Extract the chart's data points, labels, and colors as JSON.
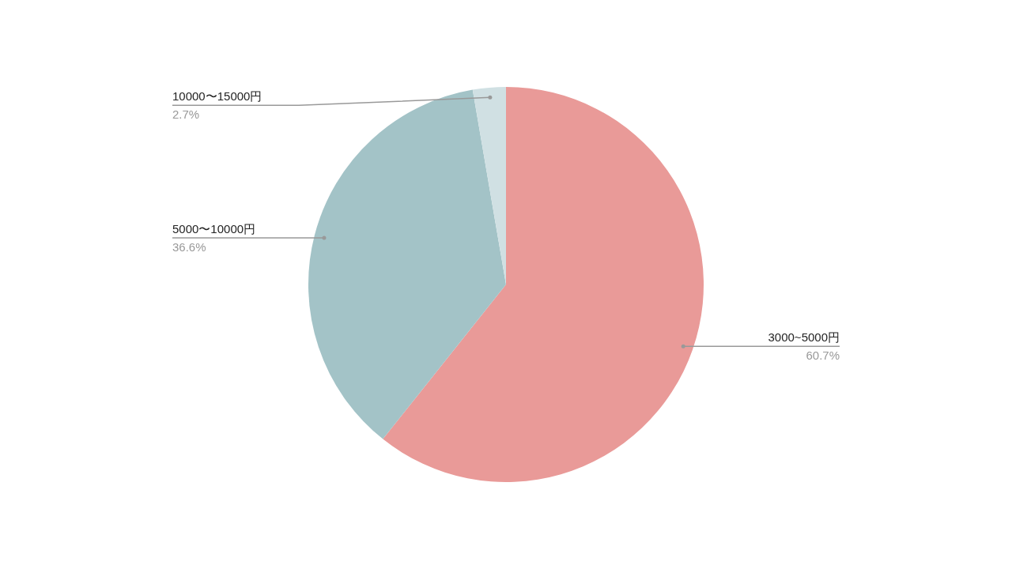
{
  "chart_data": {
    "type": "pie",
    "categories": [
      "3000~5000円",
      "5000〜10000円",
      "10000〜15000円"
    ],
    "values": [
      60.7,
      36.6,
      2.7
    ],
    "colors": [
      "#e99a98",
      "#a3c3c7",
      "#d0e0e3"
    ],
    "value_labels": [
      "60.7%",
      "36.6%",
      "2.7%"
    ],
    "legend": false
  }
}
